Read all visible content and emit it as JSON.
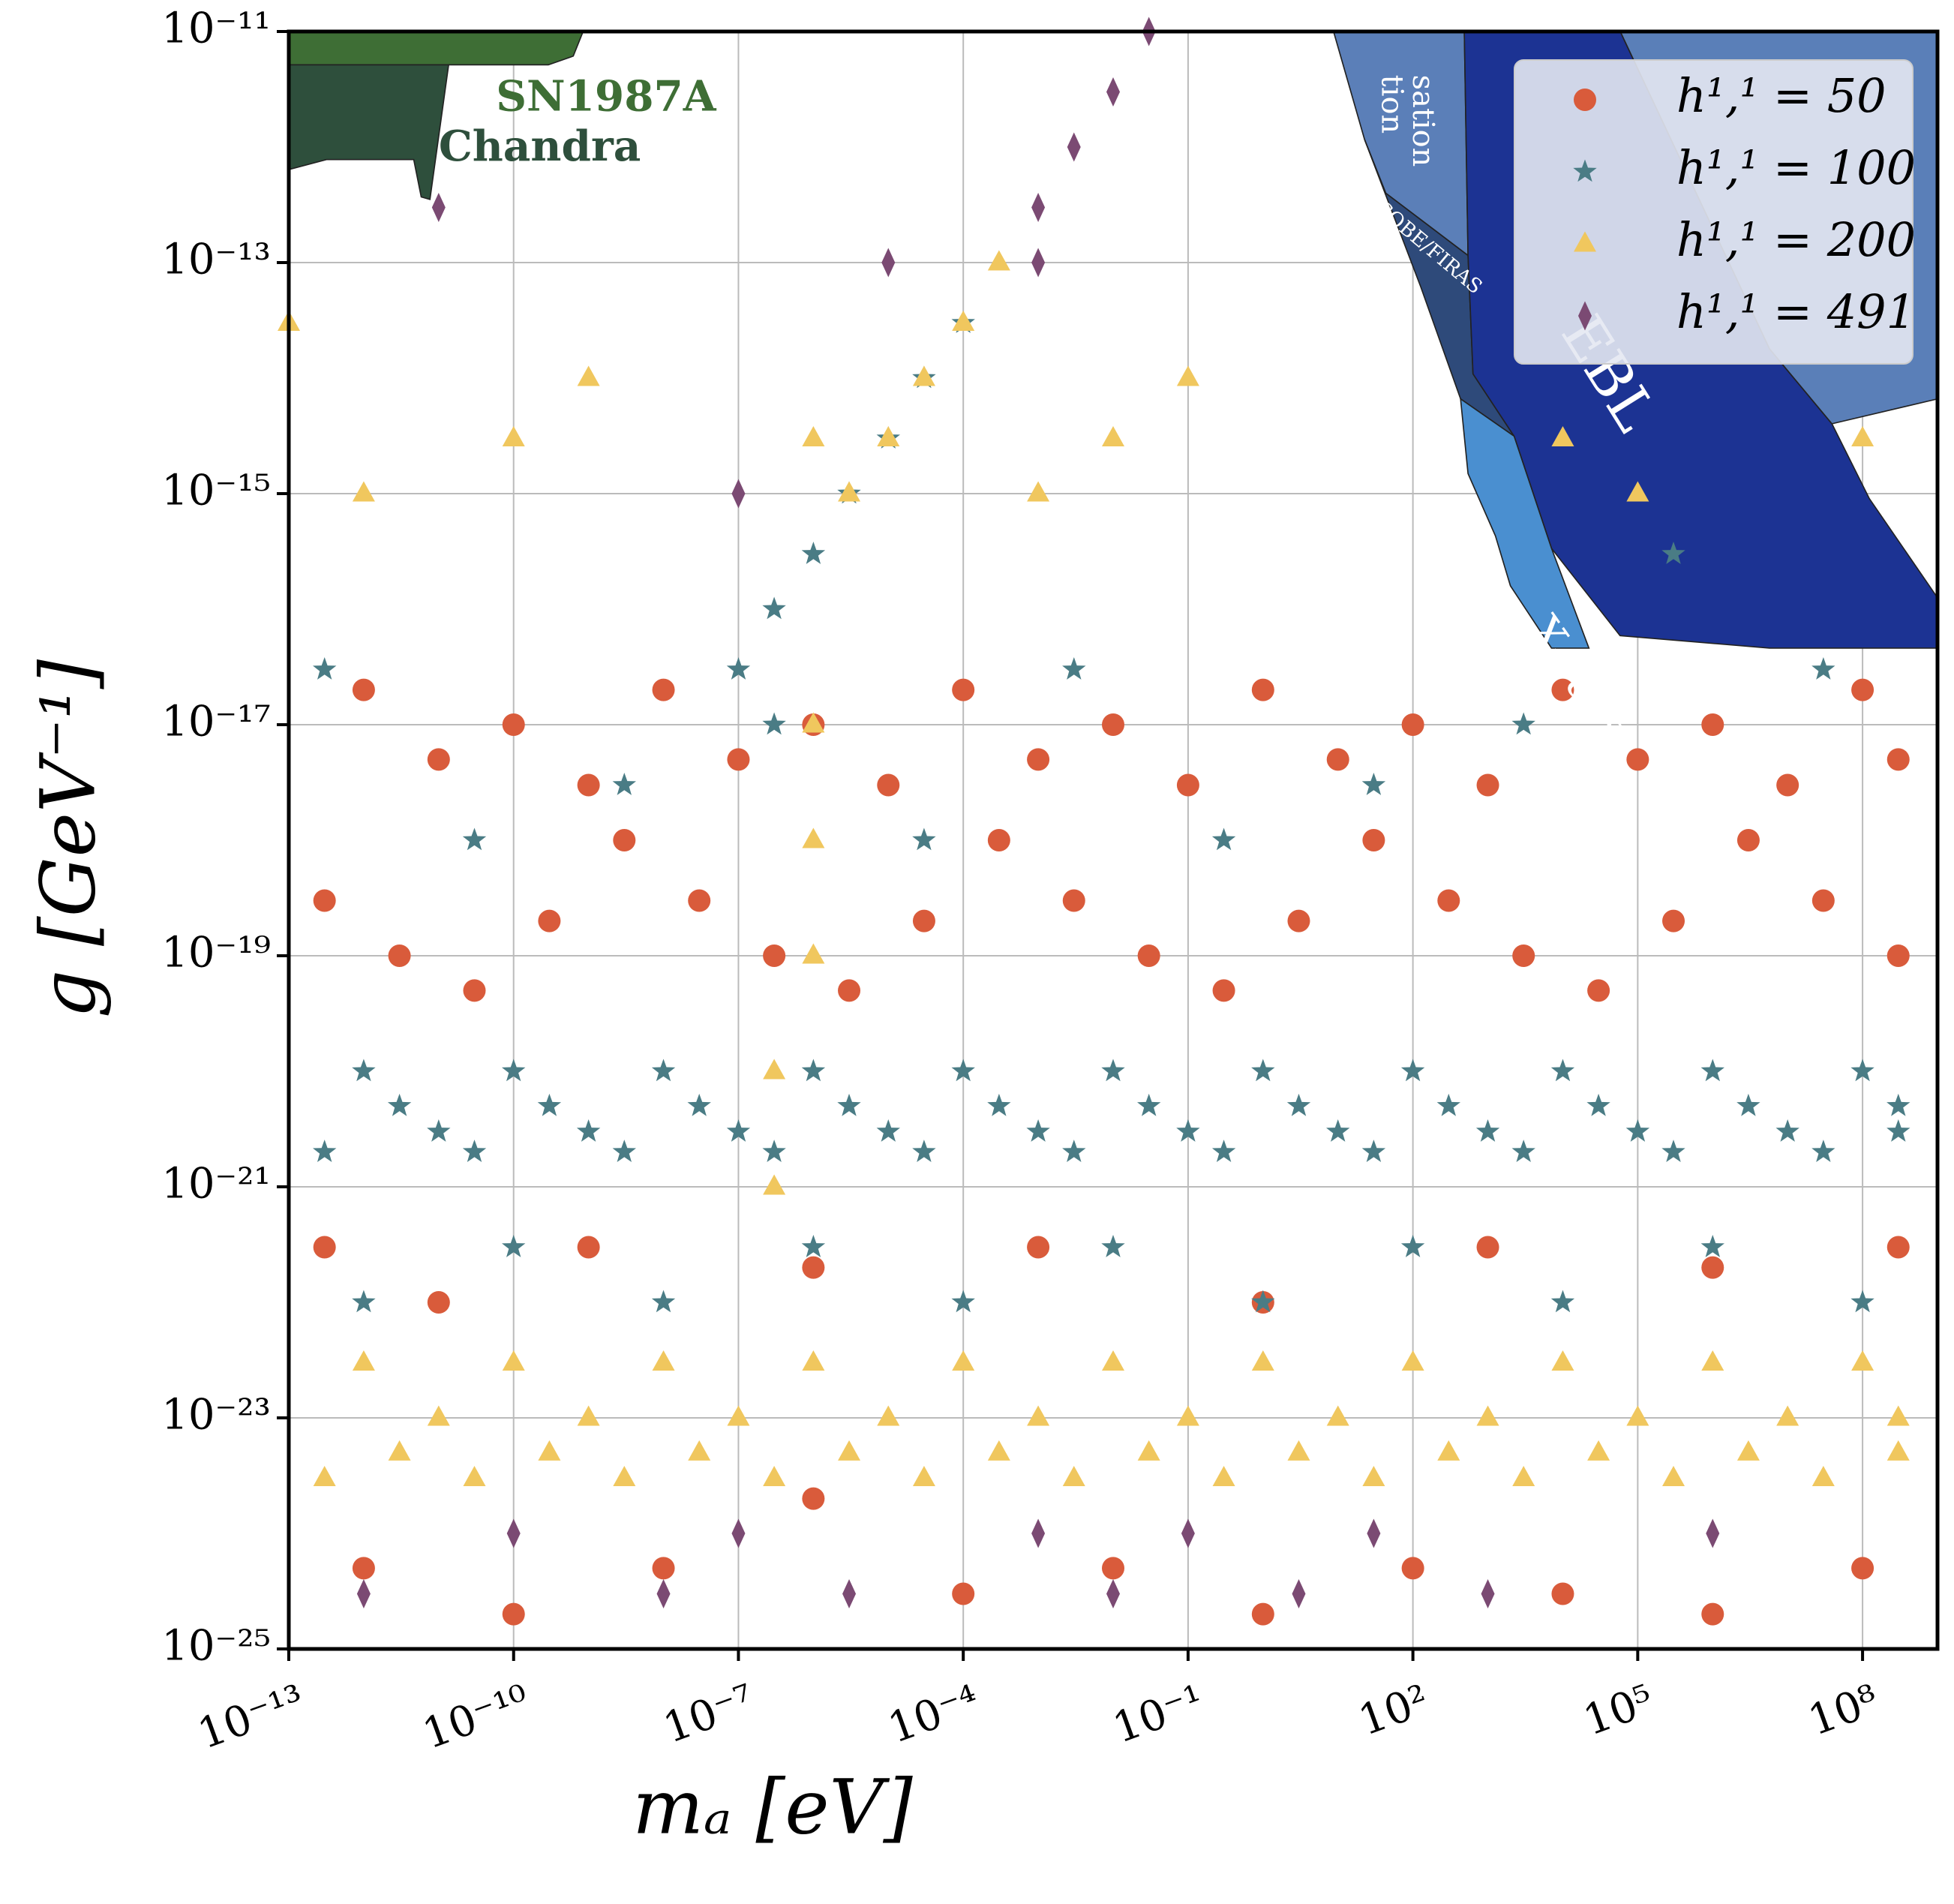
{
  "chart_data": {
    "type": "scatter",
    "xlabel": "mₐ [eV]",
    "ylabel": "g [GeV⁻¹]",
    "xscale": "log",
    "yscale": "log",
    "grid": true,
    "legend": "upper right",
    "xlim": [
      1e-13,
      1000000000.0
    ],
    "ylim": [
      1e-25,
      1e-11
    ],
    "xticks": [
      {
        "value": 1e-13,
        "label": "10⁻¹³"
      },
      {
        "value": 1e-10,
        "label": "10⁻¹⁰"
      },
      {
        "value": 1e-07,
        "label": "10⁻⁷"
      },
      {
        "value": 0.0001,
        "label": "10⁻⁴"
      },
      {
        "value": 0.1,
        "label": "10⁻¹"
      },
      {
        "value": 100,
        "label": "10²"
      },
      {
        "value": 100000,
        "label": "10⁵"
      },
      {
        "value": 100000000,
        "label": "10⁸"
      }
    ],
    "yticks": [
      {
        "value": 1e-11,
        "label": "10⁻¹¹"
      },
      {
        "value": 1e-13,
        "label": "10⁻¹³"
      },
      {
        "value": 1e-15,
        "label": "10⁻¹⁵"
      },
      {
        "value": 1e-17,
        "label": "10⁻¹⁷"
      },
      {
        "value": 1e-19,
        "label": "10⁻¹⁹"
      },
      {
        "value": 1e-21,
        "label": "10⁻²¹"
      },
      {
        "value": 1e-23,
        "label": "10⁻²³"
      },
      {
        "value": 1e-25,
        "label": "10⁻²⁵"
      }
    ],
    "annotations": [
      "SN1987A",
      "Chandra",
      "sation",
      "tion",
      "COBE/FIRAS",
      "EBL",
      "X-rays"
    ],
    "series": [
      {
        "name": "h¹,¹ = 50",
        "color": "#d95b3b",
        "marker": "circle",
        "x": [
          1e-12,
          1e-11,
          1e-10,
          1e-09,
          1e-08,
          1e-07,
          1e-06,
          1e-05,
          0.0001,
          0.001,
          0.01,
          0.1,
          1,
          10,
          100,
          1000.0,
          10000.0,
          100000.0,
          1000000.0,
          10000000.0,
          100000000.0,
          300000000.0,
          3e-13,
          3e-12,
          3e-11,
          3e-10,
          3e-09,
          3e-08,
          3e-07,
          3e-06,
          3e-05,
          0.0003,
          0.003,
          0.03,
          0.3,
          3,
          30,
          300,
          3000.0,
          30000.0,
          300000.0,
          3000000.0,
          30000000.0,
          300000000.0,
          1e-12,
          1e-10,
          1e-08,
          1e-06,
          0.0001,
          0.01,
          1,
          100,
          10000.0,
          1000000.0,
          100000000.0,
          3e-13,
          1e-11,
          1e-09,
          1e-06,
          0.001,
          1,
          1000.0,
          1000000.0,
          300000000.0
        ],
        "y": [
          2e-17,
          5e-18,
          1e-17,
          3e-18,
          2e-17,
          5e-18,
          1e-17,
          3e-18,
          2e-17,
          5e-18,
          1e-17,
          3e-18,
          2e-17,
          5e-18,
          1e-17,
          3e-18,
          2e-17,
          5e-18,
          1e-17,
          3e-18,
          2e-17,
          5e-18,
          3e-19,
          1e-19,
          5e-20,
          2e-19,
          1e-18,
          3e-19,
          1e-19,
          5e-20,
          2e-19,
          1e-18,
          3e-19,
          1e-19,
          5e-20,
          2e-19,
          1e-18,
          3e-19,
          1e-19,
          5e-20,
          2e-19,
          1e-18,
          3e-19,
          1e-19,
          5e-25,
          2e-25,
          5e-25,
          2e-24,
          3e-25,
          5e-25,
          2e-25,
          5e-25,
          3e-25,
          2e-25,
          5e-25,
          3e-22,
          1e-22,
          3e-22,
          2e-22,
          3e-22,
          1e-22,
          3e-22,
          2e-22,
          3e-22
        ]
      },
      {
        "name": "h¹,¹ = 100",
        "color": "#4a7c85",
        "marker": "star",
        "x": [
          1e-12,
          1e-11,
          1e-10,
          1e-09,
          1e-08,
          1e-07,
          1e-06,
          1e-05,
          0.0001,
          0.001,
          0.01,
          0.1,
          1,
          10,
          100,
          1000.0,
          10000.0,
          100000.0,
          1000000.0,
          10000000.0,
          100000000.0,
          300000000.0,
          3e-13,
          3e-12,
          3e-11,
          3e-10,
          3e-09,
          3e-08,
          3e-07,
          3e-06,
          3e-05,
          0.0003,
          0.003,
          0.03,
          0.3,
          3,
          30,
          300,
          3000.0,
          30000.0,
          300000.0,
          3000000.0,
          30000000.0,
          300000000.0,
          3e-13,
          3e-11,
          3e-09,
          3e-07,
          3e-05,
          0.003,
          0.3,
          30,
          3000.0,
          300000.0,
          30000000.0,
          1e-07,
          3e-07,
          1e-06,
          3e-06,
          1e-05,
          3e-05,
          0.0001,
          1e-12,
          1e-10,
          1e-08,
          1e-06,
          0.0001,
          0.01,
          1,
          100,
          10000.0,
          1000000.0,
          100000000.0
        ],
        "y": [
          1e-20,
          3e-21,
          1e-20,
          3e-21,
          1e-20,
          3e-21,
          1e-20,
          3e-21,
          1e-20,
          3e-21,
          1e-20,
          3e-21,
          1e-20,
          3e-21,
          1e-20,
          3e-21,
          1e-20,
          3e-21,
          1e-20,
          3e-21,
          1e-20,
          3e-21,
          2e-21,
          5e-21,
          2e-21,
          5e-21,
          2e-21,
          5e-21,
          2e-21,
          5e-21,
          2e-21,
          5e-21,
          2e-21,
          5e-21,
          2e-21,
          5e-21,
          2e-21,
          5e-21,
          2e-21,
          5e-21,
          2e-21,
          5e-21,
          2e-21,
          5e-21,
          3e-17,
          1e-18,
          3e-18,
          1e-17,
          1e-18,
          3e-17,
          1e-18,
          3e-18,
          1e-17,
          3e-16,
          3e-17,
          3e-17,
          1e-16,
          3e-16,
          1e-15,
          3e-15,
          1e-14,
          3e-14,
          1e-22,
          3e-22,
          1e-22,
          3e-22,
          1e-22,
          3e-22,
          1e-22,
          3e-22,
          1e-22,
          3e-22,
          1e-22
        ]
      },
      {
        "name": "h¹,¹ = 200",
        "color": "#f0c75e",
        "marker": "triangle",
        "x": [
          1e-12,
          1e-11,
          1e-10,
          1e-09,
          1e-08,
          1e-07,
          1e-06,
          1e-05,
          0.0001,
          0.001,
          0.01,
          0.1,
          1,
          10,
          100,
          1000.0,
          10000.0,
          100000.0,
          1000000.0,
          10000000.0,
          100000000.0,
          300000000.0,
          3e-13,
          3e-12,
          3e-11,
          3e-10,
          3e-09,
          3e-08,
          3e-07,
          3e-06,
          3e-05,
          0.0003,
          0.003,
          0.03,
          0.3,
          3,
          30,
          300,
          3000.0,
          30000.0,
          300000.0,
          3000000.0,
          30000000.0,
          300000000.0,
          1e-13,
          1e-12,
          1e-10,
          1e-09,
          1e-06,
          0.001,
          0.01,
          0.1,
          10000.0,
          100000.0,
          100000000.0,
          3e-06,
          1e-05,
          3e-05,
          0.0001,
          0.0003,
          1e-06,
          1e-06,
          1e-06,
          3e-07,
          3e-07
        ],
        "y": [
          3e-23,
          1e-23,
          3e-23,
          1e-23,
          3e-23,
          1e-23,
          3e-23,
          1e-23,
          3e-23,
          1e-23,
          3e-23,
          1e-23,
          3e-23,
          1e-23,
          3e-23,
          1e-23,
          3e-23,
          1e-23,
          3e-23,
          1e-23,
          3e-23,
          1e-23,
          3e-24,
          5e-24,
          3e-24,
          5e-24,
          3e-24,
          5e-24,
          3e-24,
          5e-24,
          3e-24,
          5e-24,
          3e-24,
          5e-24,
          3e-24,
          5e-24,
          3e-24,
          5e-24,
          3e-24,
          5e-24,
          3e-24,
          5e-24,
          3e-24,
          5e-24,
          3e-14,
          1e-15,
          3e-15,
          1e-14,
          3e-15,
          1e-15,
          3e-15,
          1e-14,
          3e-15,
          1e-15,
          3e-15,
          1e-15,
          3e-15,
          1e-14,
          3e-14,
          1e-13,
          1e-17,
          1e-18,
          1e-19,
          1e-20,
          1e-21
        ]
      },
      {
        "name": "h¹,¹ = 491",
        "color": "#7b4a73",
        "marker": "diamond",
        "x": [
          1e-12,
          1e-10,
          1e-08,
          1e-07,
          3e-06,
          0.001,
          0.01,
          0.1,
          3,
          30,
          1000.0,
          1000000.0,
          0.001,
          0.003,
          0.01,
          0.03,
          1e-11,
          1e-07,
          1e-05,
          0.001
        ],
        "y": [
          3e-25,
          1e-24,
          3e-25,
          1e-24,
          3e-25,
          1e-24,
          3e-25,
          1e-24,
          3e-25,
          1e-24,
          3e-25,
          1e-24,
          3e-13,
          1e-12,
          3e-12,
          1e-11,
          3e-13,
          1e-15,
          1e-13,
          1e-13
        ]
      }
    ]
  }
}
